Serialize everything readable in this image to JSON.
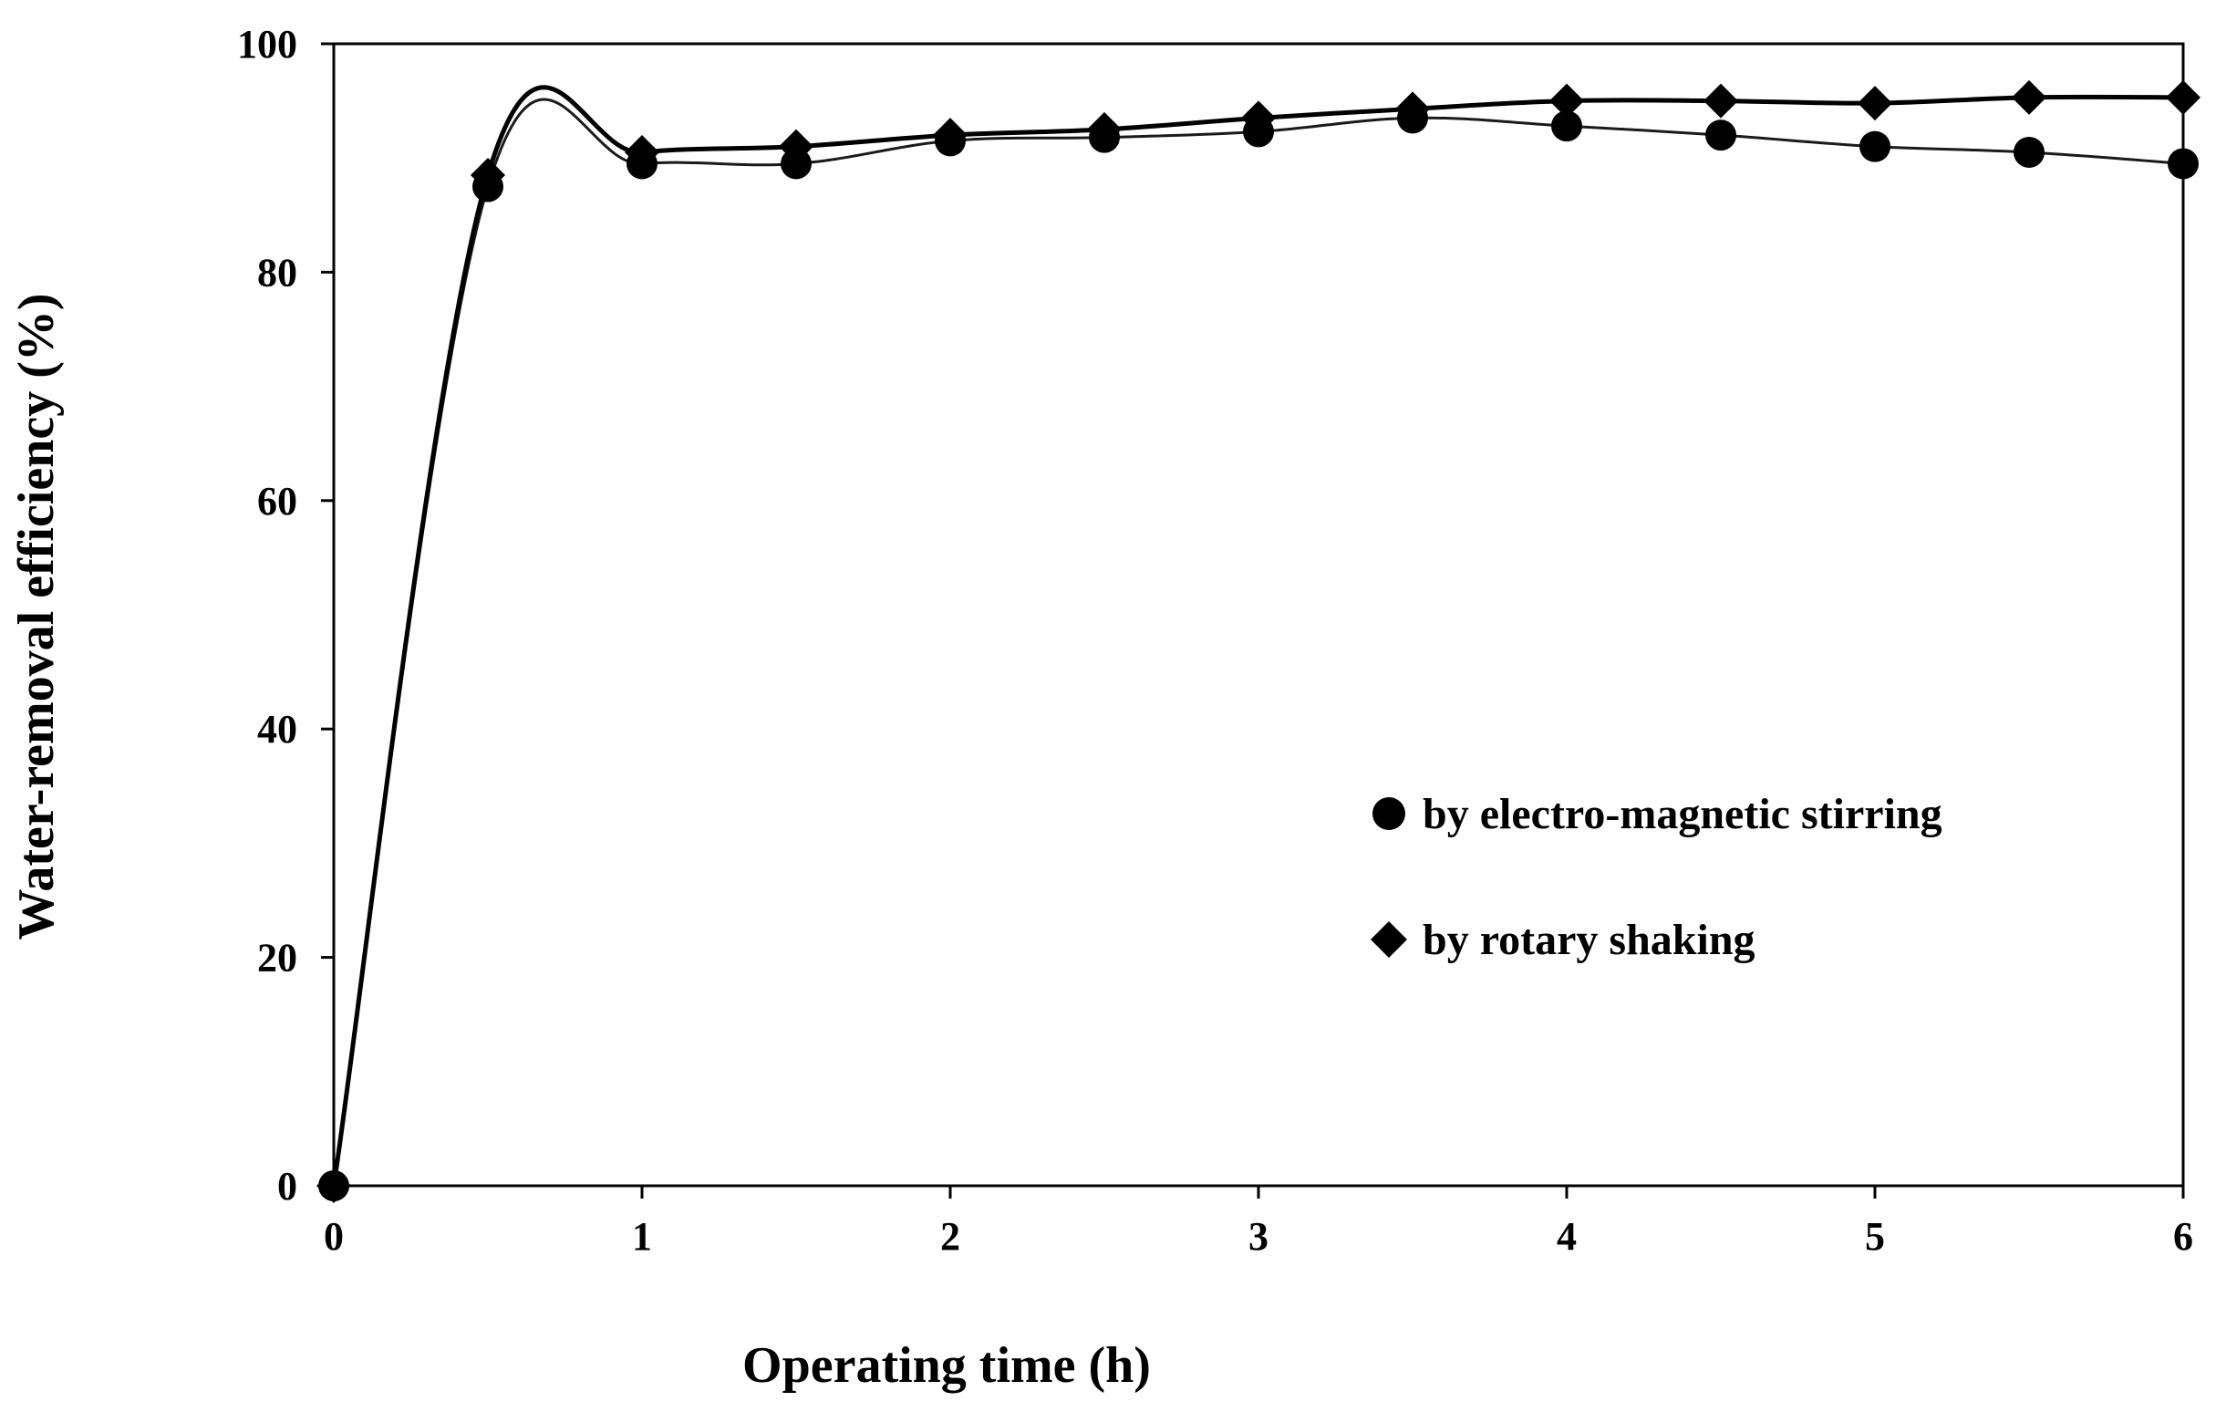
{
  "chart_data": {
    "type": "line",
    "title": "",
    "xlabel": "Operating time (h)",
    "ylabel": "Water-removal efficiency (%)",
    "xlim": [
      0,
      6
    ],
    "ylim": [
      0,
      100
    ],
    "xticks": [
      "0",
      "1",
      "2",
      "3",
      "4",
      "5",
      "6"
    ],
    "yticks": [
      "0",
      "20",
      "40",
      "60",
      "80",
      "100"
    ],
    "grid": false,
    "legend_position": "center-right",
    "series": [
      {
        "name": "by electro-magnetic stirring",
        "marker": "circle",
        "x": [
          0,
          0.5,
          1,
          1.5,
          2,
          2.5,
          3,
          3.5,
          4,
          4.5,
          5,
          5.5,
          6
        ],
        "y": [
          0,
          87.5,
          89.5,
          89.5,
          91.5,
          91.8,
          92.3,
          93.5,
          92.8,
          92.0,
          91.0,
          90.5,
          89.5
        ]
      },
      {
        "name": "by rotary shaking",
        "marker": "diamond",
        "x": [
          0,
          0.5,
          1,
          1.5,
          2,
          2.5,
          3,
          3.5,
          4,
          4.5,
          5,
          5.5,
          6
        ],
        "y": [
          0,
          88.5,
          90.5,
          91.0,
          92.0,
          92.5,
          93.5,
          94.3,
          95.0,
          95.0,
          94.8,
          95.3,
          95.3
        ]
      }
    ]
  }
}
